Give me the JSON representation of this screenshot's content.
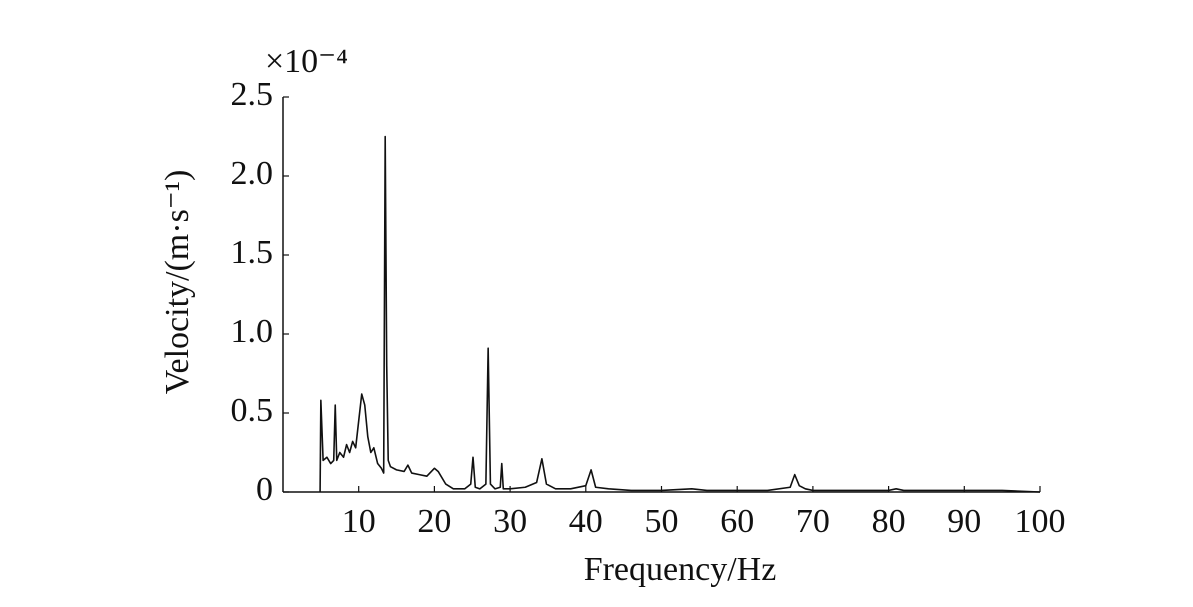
{
  "chart_data": {
    "type": "line",
    "x_label": "Frequency/Hz",
    "y_label": "Velocity/(m·s⁻¹)",
    "y_multiplier": "×10⁻⁴",
    "x": [
      4.9,
      5.0,
      5.3,
      5.8,
      6.3,
      6.7,
      6.9,
      7.1,
      7.5,
      8.0,
      8.4,
      8.8,
      9.2,
      9.6,
      10.0,
      10.4,
      10.8,
      11.2,
      11.6,
      12.0,
      12.5,
      13.0,
      13.3,
      13.5,
      13.7,
      13.9,
      14.2,
      15.0,
      16.0,
      16.5,
      17,
      18,
      19,
      20,
      20.5,
      21.5,
      22.5,
      24,
      24.8,
      25.1,
      25.4,
      26,
      26.8,
      27.1,
      27.4,
      28,
      28.7,
      28.9,
      29.1,
      30,
      32,
      33.5,
      34.2,
      34.8,
      36,
      38,
      40,
      40.7,
      41.3,
      43,
      46,
      50,
      54,
      56,
      60,
      64,
      67,
      67.6,
      68.2,
      69,
      70,
      75,
      80,
      81,
      82,
      85,
      90,
      95,
      100
    ],
    "values": [
      0,
      0.58,
      0.2,
      0.22,
      0.18,
      0.2,
      0.55,
      0.2,
      0.25,
      0.22,
      0.3,
      0.25,
      0.32,
      0.28,
      0.45,
      0.62,
      0.55,
      0.35,
      0.25,
      0.28,
      0.18,
      0.15,
      0.12,
      2.25,
      0.8,
      0.2,
      0.16,
      0.14,
      0.13,
      0.17,
      0.12,
      0.11,
      0.1,
      0.15,
      0.13,
      0.05,
      0.02,
      0.02,
      0.05,
      0.22,
      0.03,
      0.02,
      0.05,
      0.91,
      0.05,
      0.02,
      0.03,
      0.18,
      0.02,
      0.02,
      0.03,
      0.06,
      0.21,
      0.05,
      0.02,
      0.02,
      0.04,
      0.14,
      0.03,
      0.02,
      0.01,
      0.01,
      0.02,
      0.01,
      0.01,
      0.01,
      0.03,
      0.11,
      0.04,
      0.02,
      0.01,
      0.01,
      0.01,
      0.02,
      0.01,
      0.01,
      0.01,
      0.01,
      0
    ],
    "color": "#111111",
    "xlim": [
      0,
      100
    ],
    "xticks": [
      10,
      20,
      30,
      40,
      50,
      60,
      70,
      80,
      90,
      100
    ],
    "ylim": [
      0,
      2.5
    ],
    "yticks": [
      0,
      0.5,
      {
        "value": 1,
        "label": "1.0"
      },
      1.5,
      {
        "value": 2,
        "label": "2.0"
      },
      2.5
    ]
  }
}
